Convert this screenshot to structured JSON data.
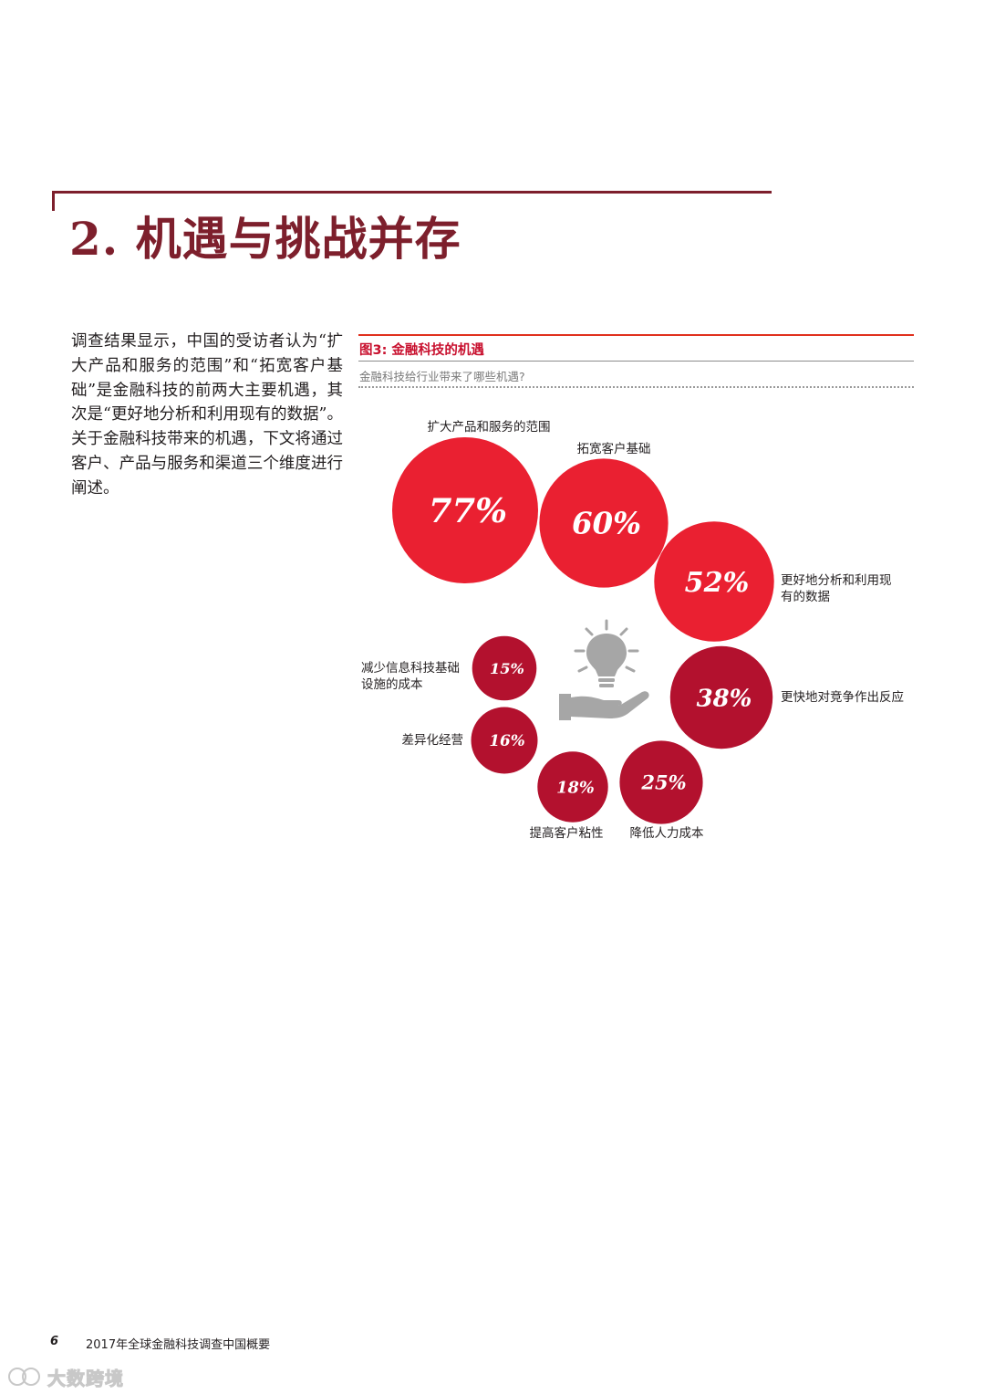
{
  "section": {
    "title": "2. 机遇与挑战并存"
  },
  "intro": {
    "text": "调查结果显示，中国的受访者认为“扩大产品和服务的范围”和“拓宽客户基础”是金融科技的前两大主要机遇，其次是“更好地分析和利用现有的数据”。关于金融科技带来的机遇，下文将通过客户、产品与服务和渠道三个维度进行阐述。"
  },
  "figure": {
    "title": "图3: 金融科技的机遇",
    "subtitle": "金融科技给行业带来了哪些机遇?"
  },
  "chart_data": {
    "type": "bubble",
    "title": "图3: 金融科技的机遇",
    "subtitle": "金融科技给行业带来了哪些机遇?",
    "unit": "%",
    "categories": [
      "扩大产品和服务的范围",
      "拓宽客户基础",
      "更好地分析和利用现有的数据",
      "更快地对竞争作出反应",
      "降低人力成本",
      "提高客户粘性",
      "差异化经营",
      "减少信息科技基础设施的成本"
    ],
    "values": [
      77,
      60,
      52,
      38,
      25,
      18,
      16,
      15
    ],
    "value_labels": [
      "77%",
      "60%",
      "52%",
      "38%",
      "25%",
      "18%",
      "16%",
      "15%"
    ],
    "colors": [
      "#ea2031",
      "#ea2031",
      "#ea2031",
      "#b3112e",
      "#b3112e",
      "#b3112e",
      "#b3112e",
      "#b3112e"
    ],
    "icon": "lightbulb-in-hand-icon"
  },
  "footer": {
    "page_number": "6",
    "title": "2017年全球金融科技调查中国概要"
  },
  "watermark": {
    "text": "大数跨境"
  }
}
